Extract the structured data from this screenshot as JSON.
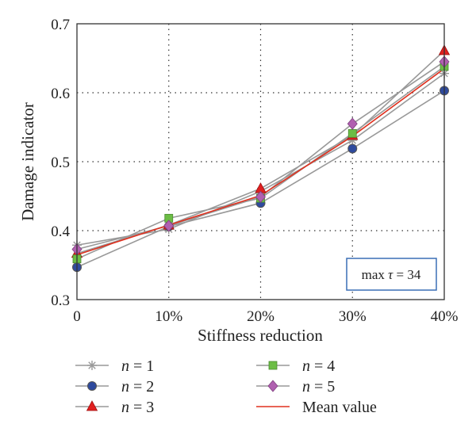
{
  "chart_data": {
    "type": "line",
    "xlabel": "Stiffness reduction",
    "ylabel": "Damage indicator",
    "categories": [
      "0",
      "10%",
      "20%",
      "30%",
      "40%"
    ],
    "y_ticks": [
      "0.3",
      "0.4",
      "0.5",
      "0.6",
      "0.7"
    ],
    "ylim": [
      0.3,
      0.7
    ],
    "grid": true,
    "series": [
      {
        "name": "n = 1",
        "name_italic": "n",
        "name_rest": " = 1",
        "marker": "asterisk",
        "color": "#999999",
        "values": [
          0.379,
          0.402,
          0.457,
          0.531,
          0.628
        ]
      },
      {
        "name": "n = 2",
        "name_italic": "n",
        "name_rest": " = 2",
        "marker": "circle",
        "color": "#2e4a9e",
        "values": [
          0.347,
          0.406,
          0.44,
          0.519,
          0.603
        ]
      },
      {
        "name": "n = 3",
        "name_italic": "n",
        "name_rest": " = 3",
        "marker": "triangle",
        "color": "#e02020",
        "values": [
          0.367,
          0.408,
          0.461,
          0.538,
          0.661
        ]
      },
      {
        "name": "n = 4",
        "name_italic": "n",
        "name_rest": " = 4",
        "marker": "square",
        "color": "#6cbd45",
        "values": [
          0.359,
          0.418,
          0.447,
          0.541,
          0.638
        ]
      },
      {
        "name": "n = 5",
        "name_italic": "n",
        "name_rest": " = 5",
        "marker": "diamond",
        "color": "#b060b0",
        "values": [
          0.373,
          0.407,
          0.449,
          0.555,
          0.645
        ]
      }
    ],
    "mean": {
      "name": "Mean value",
      "color": "#e0301e",
      "values": [
        0.365,
        0.408,
        0.451,
        0.537,
        0.635
      ]
    },
    "annotation": {
      "prefix": "max ",
      "symbol": "τ",
      "suffix": " = 34"
    },
    "legend_placement": "bottom"
  }
}
